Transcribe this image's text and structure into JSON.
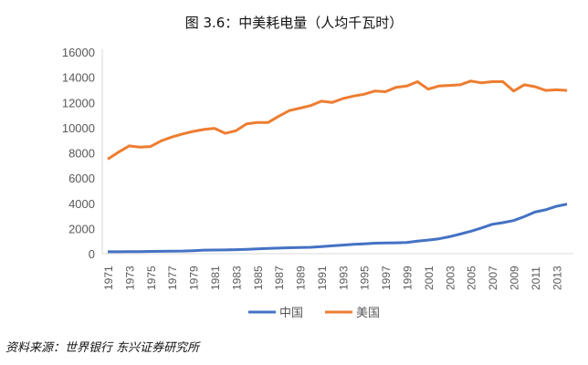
{
  "chart_data": {
    "type": "line",
    "title": "图 3.6：中美耗电量（人均千瓦时）",
    "source": "资料来源：世界银行 东兴证券研究所",
    "ylim": [
      0,
      16000
    ],
    "yticks": [
      0,
      2000,
      4000,
      6000,
      8000,
      10000,
      12000,
      14000,
      16000
    ],
    "x": [
      1971,
      1972,
      1973,
      1974,
      1975,
      1976,
      1977,
      1978,
      1979,
      1980,
      1981,
      1982,
      1983,
      1984,
      1985,
      1986,
      1987,
      1988,
      1989,
      1990,
      1991,
      1992,
      1993,
      1994,
      1995,
      1996,
      1997,
      1998,
      1999,
      2000,
      2001,
      2002,
      2003,
      2004,
      2005,
      2006,
      2007,
      2008,
      2009,
      2010,
      2011,
      2012,
      2013,
      2014
    ],
    "xtick_labels": [
      "1971",
      "1973",
      "1975",
      "1977",
      "1979",
      "1981",
      "1983",
      "1985",
      "1987",
      "1989",
      "1991",
      "1993",
      "1995",
      "1997",
      "1999",
      "2001",
      "2003",
      "2005",
      "2007",
      "2009",
      "2011",
      "2013"
    ],
    "grid": false,
    "legend": "bottom",
    "series": [
      {
        "name": "中国",
        "color": "#4472C4",
        "values": [
          150,
          155,
          160,
          165,
          180,
          185,
          200,
          210,
          240,
          280,
          290,
          300,
          320,
          350,
          380,
          410,
          440,
          470,
          490,
          510,
          560,
          620,
          680,
          740,
          780,
          830,
          850,
          860,
          890,
          990,
          1080,
          1180,
          1350,
          1560,
          1780,
          2040,
          2330,
          2460,
          2630,
          2940,
          3300,
          3480,
          3760,
          3930
        ]
      },
      {
        "name": "美国",
        "color": "#ED7D31",
        "values": [
          7500,
          8050,
          8550,
          8450,
          8500,
          8950,
          9250,
          9500,
          9700,
          9850,
          9950,
          9550,
          9750,
          10300,
          10400,
          10400,
          10900,
          11350,
          11550,
          11750,
          12100,
          12000,
          12300,
          12500,
          12650,
          12900,
          12850,
          13200,
          13300,
          13650,
          13050,
          13300,
          13350,
          13400,
          13700,
          13550,
          13650,
          13650,
          12900,
          13400,
          13250,
          12950,
          13000,
          12950
        ]
      }
    ]
  }
}
